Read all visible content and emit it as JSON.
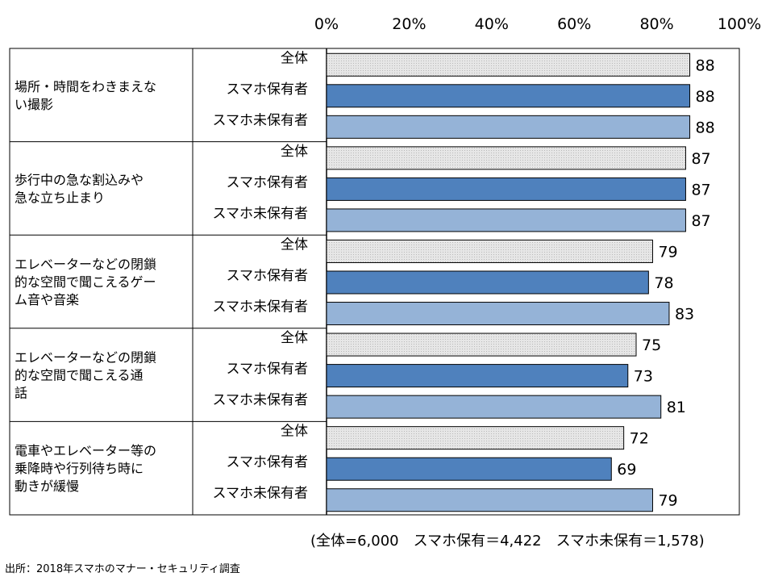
{
  "chart_data": {
    "type": "bar",
    "orientation": "horizontal",
    "xlim": [
      0,
      100
    ],
    "xticks": [
      "0%",
      "20%",
      "40%",
      "60%",
      "80%",
      "100%"
    ],
    "grid": false,
    "legend": "none",
    "groups": [
      "場所・時間をわきまえない撮影",
      "歩行中の急な割込みや急な立ち止まり",
      "エレベーターなどの閉鎖的な空間で聞こえるゲーム音や音楽",
      "エレベーターなどの閉鎖的な空間で聞こえる通話",
      "電車やエレベーター等の乗降時や行列待ち時に動きが緩慢"
    ],
    "group_label_lines": [
      [
        "場所・時間をわきまえな",
        "い撮影"
      ],
      [
        "歩行中の急な割込みや",
        "急な立ち止まり"
      ],
      [
        "エレベーターなどの閉鎖",
        "的な空間で聞こえるゲー",
        "ム音や音楽"
      ],
      [
        "エレベーターなどの閉鎖",
        "的な空間で聞こえる通",
        "話"
      ],
      [
        "電車やエレベーター等の",
        "乗降時や行列待ち時に",
        "動きが緩慢"
      ]
    ],
    "subcategories": [
      "全体",
      "スマホ保有者",
      "スマホ未保有者"
    ],
    "series": [
      {
        "values": [
          88,
          87,
          79,
          75,
          72
        ],
        "color": "#dcdcdc"
      },
      {
        "values": [
          88,
          87,
          78,
          73,
          69
        ],
        "color": "#4f81bd"
      },
      {
        "values": [
          88,
          87,
          83,
          81,
          79
        ],
        "color": "#95b3d7"
      }
    ]
  },
  "footer": {
    "sample_note": "(全体=6,000　スマホ保有＝4,422　スマホ未保有＝1,578)",
    "source": "出所：2018年スマホのマナー・セキュリティ調査"
  }
}
